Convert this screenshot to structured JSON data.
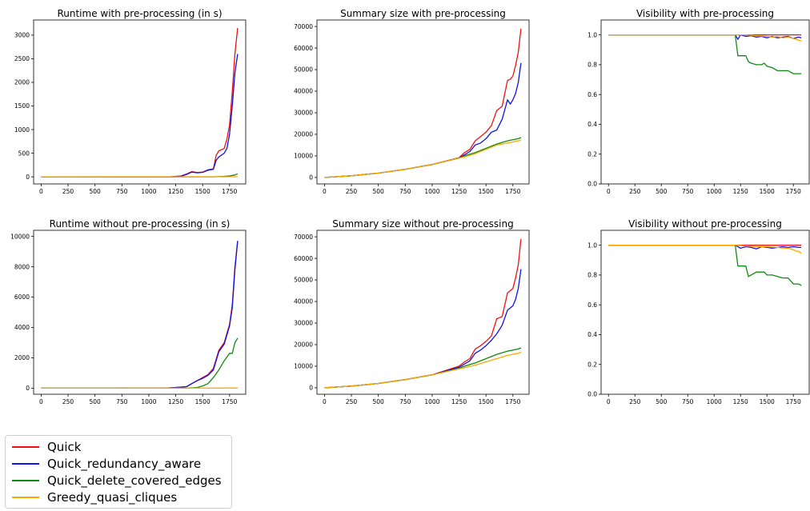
{
  "colors": {
    "Quick": "#ee1111",
    "Quick_redundancy_aware": "#1111ee",
    "Quick_delete_covered_edges": "#118811",
    "Greedy_quasi_cliques": "#ffa500"
  },
  "legend": {
    "items": [
      {
        "label": "Quick",
        "color": "#ee1111"
      },
      {
        "label": "Quick_redundancy_aware",
        "color": "#1111ee"
      },
      {
        "label": "Quick_delete_covered_edges",
        "color": "#118811"
      },
      {
        "label": "Greedy_quasi_cliques",
        "color": "#ffa500"
      }
    ],
    "placement": "below-left"
  },
  "chart_data": [
    {
      "type": "line",
      "title": "Runtime with pre-processing (in s)",
      "xlabel": "",
      "ylabel": "",
      "xlim": [
        -70,
        1900
      ],
      "ylim": [
        -150,
        3320
      ],
      "xticks": [
        0,
        250,
        500,
        750,
        1000,
        1250,
        1500,
        1750
      ],
      "yticks": [
        0,
        500,
        1000,
        1500,
        2000,
        2500,
        3000
      ],
      "series": [
        {
          "name": "Quick",
          "x": [
            0,
            1200,
            1250,
            1300,
            1350,
            1400,
            1450,
            1500,
            1550,
            1600,
            1625,
            1650,
            1700,
            1725,
            1750,
            1775,
            1800,
            1825
          ],
          "y": [
            0,
            0,
            10,
            20,
            60,
            110,
            90,
            100,
            150,
            170,
            450,
            550,
            600,
            800,
            1100,
            1800,
            2600,
            3150
          ]
        },
        {
          "name": "Quick_redundancy_aware",
          "x": [
            0,
            1200,
            1250,
            1300,
            1350,
            1400,
            1450,
            1500,
            1550,
            1600,
            1625,
            1650,
            1700,
            1725,
            1750,
            1775,
            1800,
            1825
          ],
          "y": [
            0,
            0,
            5,
            15,
            50,
            100,
            85,
            95,
            140,
            160,
            350,
            420,
            500,
            600,
            900,
            1500,
            2200,
            2600
          ]
        },
        {
          "name": "Quick_delete_covered_edges",
          "x": [
            0,
            1600,
            1700,
            1750,
            1800,
            1825
          ],
          "y": [
            0,
            0,
            10,
            20,
            40,
            65
          ]
        },
        {
          "name": "Greedy_quasi_cliques",
          "x": [
            0,
            1825
          ],
          "y": [
            0,
            2
          ]
        }
      ]
    },
    {
      "type": "line",
      "title": "Summary size with pre-processing",
      "xlabel": "",
      "ylabel": "",
      "xlim": [
        -70,
        1900
      ],
      "ylim": [
        -3000,
        73000
      ],
      "xticks": [
        0,
        250,
        500,
        750,
        1000,
        1250,
        1500,
        1750
      ],
      "yticks": [
        0,
        10000,
        20000,
        30000,
        40000,
        50000,
        60000,
        70000
      ],
      "series": [
        {
          "name": "Quick",
          "x": [
            0,
            250,
            500,
            750,
            1000,
            1250,
            1300,
            1350,
            1400,
            1450,
            1500,
            1550,
            1600,
            1650,
            1700,
            1725,
            1750,
            1775,
            1800,
            1825
          ],
          "y": [
            0,
            800,
            2000,
            3800,
            6000,
            9200,
            11500,
            13000,
            17000,
            19000,
            21000,
            24000,
            31000,
            33000,
            45000,
            45500,
            47000,
            52000,
            58000,
            69000
          ]
        },
        {
          "name": "Quick_redundancy_aware",
          "x": [
            0,
            250,
            500,
            750,
            1000,
            1250,
            1300,
            1350,
            1400,
            1450,
            1500,
            1550,
            1600,
            1650,
            1700,
            1725,
            1750,
            1775,
            1800,
            1825
          ],
          "y": [
            0,
            800,
            2000,
            3800,
            6000,
            9000,
            10500,
            12000,
            15000,
            16000,
            18000,
            21000,
            22000,
            27000,
            36000,
            34000,
            36000,
            39000,
            44000,
            53000
          ]
        },
        {
          "name": "Quick_delete_covered_edges",
          "x": [
            0,
            250,
            500,
            750,
            1000,
            1250,
            1300,
            1400,
            1500,
            1600,
            1700,
            1800,
            1825
          ],
          "y": [
            0,
            800,
            2000,
            3800,
            6000,
            9000,
            10000,
            11500,
            13500,
            15500,
            17000,
            18000,
            18500
          ]
        },
        {
          "name": "Greedy_quasi_cliques",
          "x": [
            0,
            250,
            500,
            750,
            1000,
            1250,
            1300,
            1400,
            1500,
            1600,
            1700,
            1800,
            1825
          ],
          "y": [
            0,
            800,
            2000,
            3800,
            6000,
            9000,
            9500,
            11000,
            13000,
            15000,
            16000,
            17000,
            17500
          ]
        }
      ]
    },
    {
      "type": "line",
      "title": "Visibility with pre-processing",
      "xlabel": "",
      "ylabel": "",
      "xlim": [
        -70,
        1900
      ],
      "ylim": [
        0.0,
        1.1
      ],
      "xticks": [
        0,
        250,
        500,
        750,
        1000,
        1250,
        1500,
        1750
      ],
      "yticks": [
        0.0,
        0.2,
        0.4,
        0.6,
        0.8,
        1.0
      ],
      "series": [
        {
          "name": "Quick",
          "x": [
            0,
            1825
          ],
          "y": [
            1.0,
            1.0
          ]
        },
        {
          "name": "Quick_redundancy_aware",
          "x": [
            0,
            1200,
            1225,
            1250,
            1300,
            1350,
            1400,
            1450,
            1500,
            1550,
            1600,
            1650,
            1700,
            1750,
            1800,
            1825
          ],
          "y": [
            1.0,
            1.0,
            0.97,
            1.0,
            0.99,
            0.995,
            0.985,
            0.99,
            0.98,
            0.99,
            0.98,
            0.985,
            0.99,
            0.975,
            0.985,
            0.98
          ]
        },
        {
          "name": "Quick_delete_covered_edges",
          "x": [
            0,
            1200,
            1225,
            1250,
            1300,
            1325,
            1350,
            1400,
            1450,
            1475,
            1500,
            1550,
            1600,
            1650,
            1700,
            1750,
            1800,
            1825
          ],
          "y": [
            1.0,
            1.0,
            0.86,
            0.86,
            0.86,
            0.82,
            0.81,
            0.8,
            0.8,
            0.81,
            0.79,
            0.78,
            0.76,
            0.76,
            0.76,
            0.74,
            0.74,
            0.74
          ]
        },
        {
          "name": "Greedy_quasi_cliques",
          "x": [
            0,
            1200,
            1300,
            1400,
            1500,
            1550,
            1600,
            1650,
            1700,
            1750,
            1800,
            1825
          ],
          "y": [
            1.0,
            1.0,
            1.0,
            0.995,
            0.99,
            0.985,
            0.99,
            0.98,
            0.985,
            0.975,
            0.965,
            0.96
          ]
        }
      ]
    },
    {
      "type": "line",
      "title": "Runtime without pre-processing (in s)",
      "xlabel": "",
      "ylabel": "",
      "xlim": [
        -70,
        1900
      ],
      "ylim": [
        -400,
        10400
      ],
      "xticks": [
        0,
        250,
        500,
        750,
        1000,
        1250,
        1500,
        1750
      ],
      "yticks": [
        0,
        2000,
        4000,
        6000,
        8000,
        10000
      ],
      "series": [
        {
          "name": "Quick",
          "x": [
            0,
            1150,
            1250,
            1350,
            1400,
            1450,
            1500,
            1550,
            1600,
            1650,
            1700,
            1750,
            1775,
            1800,
            1825
          ],
          "y": [
            0,
            0,
            50,
            100,
            300,
            500,
            700,
            900,
            1300,
            2500,
            3000,
            4200,
            5500,
            8000,
            9700
          ]
        },
        {
          "name": "Quick_redundancy_aware",
          "x": [
            0,
            1150,
            1250,
            1350,
            1400,
            1450,
            1500,
            1550,
            1600,
            1650,
            1700,
            1750,
            1775,
            1800,
            1825
          ],
          "y": [
            0,
            0,
            50,
            100,
            300,
            500,
            650,
            850,
            1200,
            2400,
            2900,
            4100,
            5300,
            7800,
            9700
          ]
        },
        {
          "name": "Quick_delete_covered_edges",
          "x": [
            0,
            1350,
            1450,
            1500,
            1550,
            1600,
            1650,
            1700,
            1750,
            1775,
            1800,
            1825
          ],
          "y": [
            0,
            0,
            50,
            150,
            300,
            700,
            1200,
            1800,
            2300,
            2300,
            3000,
            3300
          ]
        },
        {
          "name": "Greedy_quasi_cliques",
          "x": [
            0,
            1825
          ],
          "y": [
            0,
            10
          ]
        }
      ]
    },
    {
      "type": "line",
      "title": "Summary size without pre-processing",
      "xlabel": "",
      "ylabel": "",
      "xlim": [
        -70,
        1900
      ],
      "ylim": [
        -3000,
        73000
      ],
      "xticks": [
        0,
        250,
        500,
        750,
        1000,
        1250,
        1500,
        1750
      ],
      "yticks": [
        0,
        10000,
        20000,
        30000,
        40000,
        50000,
        60000,
        70000
      ],
      "series": [
        {
          "name": "Quick",
          "x": [
            0,
            250,
            500,
            750,
            1000,
            1250,
            1300,
            1350,
            1400,
            1450,
            1500,
            1550,
            1600,
            1650,
            1700,
            1725,
            1750,
            1775,
            1800,
            1825
          ],
          "y": [
            0,
            800,
            2000,
            3800,
            6000,
            10000,
            12000,
            13500,
            18000,
            19500,
            21500,
            24000,
            32000,
            33000,
            44000,
            45000,
            46000,
            51000,
            57000,
            69000
          ]
        },
        {
          "name": "Quick_redundancy_aware",
          "x": [
            0,
            250,
            500,
            750,
            1000,
            1250,
            1300,
            1350,
            1400,
            1450,
            1500,
            1550,
            1600,
            1650,
            1700,
            1725,
            1750,
            1775,
            1800,
            1825
          ],
          "y": [
            0,
            800,
            2000,
            3800,
            6000,
            9500,
            11000,
            12500,
            16000,
            17500,
            19500,
            22000,
            25000,
            29000,
            36000,
            37000,
            38000,
            41000,
            46000,
            55000
          ]
        },
        {
          "name": "Quick_delete_covered_edges",
          "x": [
            0,
            250,
            500,
            750,
            1000,
            1250,
            1300,
            1400,
            1500,
            1600,
            1700,
            1800,
            1825
          ],
          "y": [
            0,
            800,
            2000,
            3800,
            6000,
            9000,
            10000,
            11500,
            13500,
            15500,
            17000,
            18000,
            18500
          ]
        },
        {
          "name": "Greedy_quasi_cliques",
          "x": [
            0,
            250,
            500,
            750,
            1000,
            1250,
            1300,
            1400,
            1500,
            1600,
            1700,
            1800,
            1825
          ],
          "y": [
            0,
            800,
            2000,
            3800,
            6000,
            8800,
            9300,
            10500,
            12000,
            13500,
            15000,
            16000,
            16500
          ]
        }
      ]
    },
    {
      "type": "line",
      "title": "Visibility without pre-processing",
      "xlabel": "",
      "ylabel": "",
      "xlim": [
        -70,
        1900
      ],
      "ylim": [
        0.0,
        1.1
      ],
      "xticks": [
        0,
        250,
        500,
        750,
        1000,
        1250,
        1500,
        1750
      ],
      "yticks": [
        0.0,
        0.2,
        0.4,
        0.6,
        0.8,
        1.0
      ],
      "series": [
        {
          "name": "Quick",
          "x": [
            0,
            1825
          ],
          "y": [
            1.0,
            1.0
          ]
        },
        {
          "name": "Quick_redundancy_aware",
          "x": [
            0,
            1200,
            1250,
            1300,
            1350,
            1400,
            1450,
            1500,
            1550,
            1600,
            1650,
            1700,
            1750,
            1800,
            1825
          ],
          "y": [
            1.0,
            1.0,
            0.98,
            0.99,
            0.985,
            0.975,
            0.99,
            0.985,
            0.98,
            0.985,
            0.99,
            0.985,
            0.99,
            0.985,
            0.985
          ]
        },
        {
          "name": "Quick_delete_covered_edges",
          "x": [
            0,
            1200,
            1225,
            1250,
            1300,
            1325,
            1350,
            1400,
            1450,
            1475,
            1500,
            1550,
            1600,
            1650,
            1700,
            1750,
            1800,
            1825
          ],
          "y": [
            1.0,
            1.0,
            0.86,
            0.86,
            0.86,
            0.79,
            0.8,
            0.82,
            0.82,
            0.82,
            0.8,
            0.8,
            0.79,
            0.78,
            0.78,
            0.74,
            0.74,
            0.73
          ]
        },
        {
          "name": "Greedy_quasi_cliques",
          "x": [
            0,
            1200,
            1300,
            1400,
            1500,
            1600,
            1650,
            1700,
            1750,
            1775,
            1800,
            1825
          ],
          "y": [
            1.0,
            1.0,
            0.995,
            0.99,
            0.99,
            0.985,
            0.98,
            0.98,
            0.97,
            0.96,
            0.96,
            0.945
          ]
        }
      ]
    }
  ]
}
